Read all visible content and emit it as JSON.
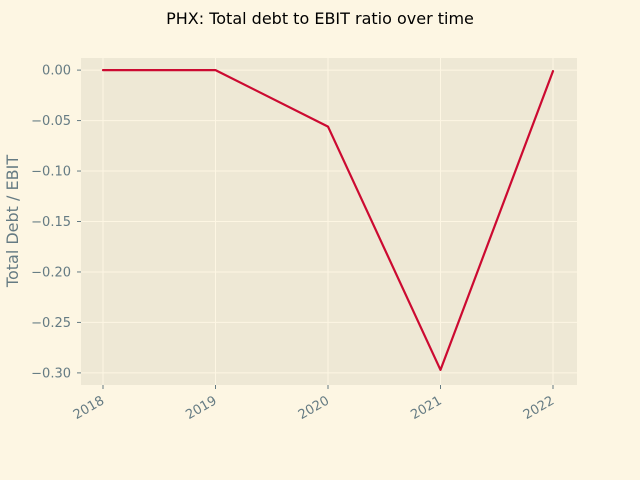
{
  "chart_data": {
    "type": "line",
    "title": "PHX: Total debt to EBIT ratio over time",
    "xlabel": "",
    "ylabel": "Total Debt / EBIT",
    "categories": [
      "2018",
      "2019",
      "2020",
      "2021",
      "2022"
    ],
    "series": [
      {
        "values": [
          0.0,
          0.0,
          -0.056,
          -0.297,
          -0.001
        ]
      }
    ],
    "yticks": [
      0.0,
      -0.05,
      -0.1,
      -0.15,
      -0.2,
      -0.25,
      -0.3
    ],
    "ytick_labels": [
      "0.00",
      "−0.05",
      "−0.10",
      "−0.15",
      "−0.20",
      "−0.25",
      "−0.30"
    ],
    "ylim": [
      -0.312,
      0.012
    ],
    "grid": true,
    "colors": {
      "figure_bg": "#fdf6e3",
      "axes_bg": "#eee8d5",
      "grid": "#fdf6e3",
      "line": "#cc0a31",
      "tick_text": "#657b83"
    }
  }
}
